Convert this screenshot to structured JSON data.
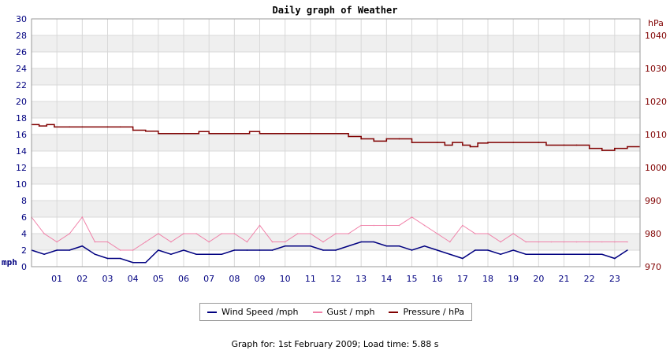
{
  "chart_data": {
    "type": "line",
    "title": "Daily graph of Weather",
    "left_axis": {
      "unit": "mph",
      "ylim": [
        0,
        30
      ],
      "ticks": [
        "0",
        "2",
        "4",
        "6",
        "8",
        "10",
        "12",
        "14",
        "16",
        "18",
        "20",
        "22",
        "24",
        "26",
        "28",
        "30"
      ]
    },
    "right_axis": {
      "unit": "hPa",
      "ylim": [
        970,
        1045
      ],
      "ticks": [
        "970",
        "980",
        "990",
        "1000",
        "1010",
        "1020",
        "1030",
        "1040"
      ]
    },
    "x_tick_labels": [
      "01",
      "02",
      "03",
      "04",
      "05",
      "06",
      "07",
      "08",
      "09",
      "10",
      "11",
      "12",
      "13",
      "14",
      "15",
      "16",
      "17",
      "18",
      "19",
      "20",
      "21",
      "22",
      "23"
    ],
    "grid": true,
    "legend_position": "bottom",
    "series": [
      {
        "name": "Wind Speed /mph",
        "axis": "left",
        "color": "#000080",
        "x": [
          0,
          0.5,
          1,
          1.5,
          2,
          2.5,
          3,
          3.5,
          4,
          4.5,
          5,
          5.5,
          6,
          6.5,
          7,
          7.5,
          8,
          8.5,
          9,
          9.5,
          10,
          10.5,
          11,
          11.5,
          12,
          12.5,
          13,
          13.5,
          14,
          14.5,
          15,
          15.5,
          16,
          16.5,
          17,
          17.5,
          18,
          18.5,
          19,
          19.5,
          20,
          20.5,
          21,
          21.5,
          22,
          22.5,
          23,
          23.5
        ],
        "values": [
          2,
          1.5,
          2,
          2,
          2.5,
          1.5,
          1,
          1,
          0.5,
          0.5,
          2,
          1.5,
          2,
          1.5,
          1.5,
          1.5,
          2,
          2,
          2,
          2,
          2.5,
          2.5,
          2.5,
          2,
          2,
          2.5,
          3,
          3,
          2.5,
          2.5,
          2,
          2.5,
          2,
          1.5,
          1,
          2,
          2,
          1.5,
          2,
          1.5,
          1.5,
          1.5,
          1.5,
          1.5,
          1.5,
          1.5,
          1,
          2
        ]
      },
      {
        "name": "Gust / mph",
        "axis": "left",
        "color": "#f080a8",
        "x": [
          0,
          0.5,
          1,
          1.5,
          2,
          2.5,
          3,
          3.5,
          4,
          4.5,
          5,
          5.5,
          6,
          6.5,
          7,
          7.5,
          8,
          8.5,
          9,
          9.5,
          10,
          10.5,
          11,
          11.5,
          12,
          12.5,
          13,
          13.5,
          14,
          14.5,
          15,
          15.5,
          16,
          16.5,
          17,
          17.5,
          18,
          18.5,
          19,
          19.5,
          20,
          20.5,
          21,
          21.5,
          22,
          22.5,
          23,
          23.5
        ],
        "values": [
          6,
          4,
          3,
          4,
          6,
          3,
          3,
          2,
          2,
          3,
          4,
          3,
          4,
          4,
          3,
          4,
          4,
          3,
          5,
          3,
          3,
          4,
          4,
          3,
          4,
          4,
          5,
          5,
          5,
          5,
          6,
          5,
          4,
          3,
          5,
          4,
          4,
          3,
          4,
          3,
          3,
          3,
          3,
          3,
          3,
          3,
          3,
          3
        ]
      },
      {
        "name": "Pressure / hPa",
        "axis": "right",
        "color": "#800000",
        "x": [
          0,
          0.3,
          0.6,
          0.9,
          1.5,
          2,
          3,
          3.5,
          4,
          4.5,
          5,
          6,
          6.6,
          7,
          8,
          8.6,
          9,
          10,
          11,
          12,
          12.5,
          13,
          13.5,
          14,
          14.5,
          15,
          16,
          16.3,
          16.6,
          17,
          17.3,
          17.6,
          18,
          19,
          20,
          20.3,
          21,
          21.5,
          22,
          22.5,
          23,
          23.5
        ],
        "values": [
          1013,
          1012.6,
          1013,
          1012.3,
          1012.3,
          1012.3,
          1012.3,
          1012.3,
          1011.3,
          1011,
          1010.3,
          1010.3,
          1010.9,
          1010.3,
          1010.3,
          1010.9,
          1010.3,
          1010.3,
          1010.3,
          1010.3,
          1009.4,
          1008.7,
          1008,
          1008.7,
          1008.7,
          1007.6,
          1007.6,
          1006.8,
          1007.6,
          1006.8,
          1006.3,
          1007.4,
          1007.6,
          1007.6,
          1007.6,
          1006.8,
          1006.8,
          1006.8,
          1005.8,
          1005.2,
          1005.8,
          1006.3
        ]
      }
    ]
  },
  "legend": {
    "wind": "Wind Speed /mph",
    "gust": "Gust / mph",
    "pressure": "Pressure / hPa"
  },
  "footer": "Graph for: 1st February 2009; Load time: 5.88 s"
}
